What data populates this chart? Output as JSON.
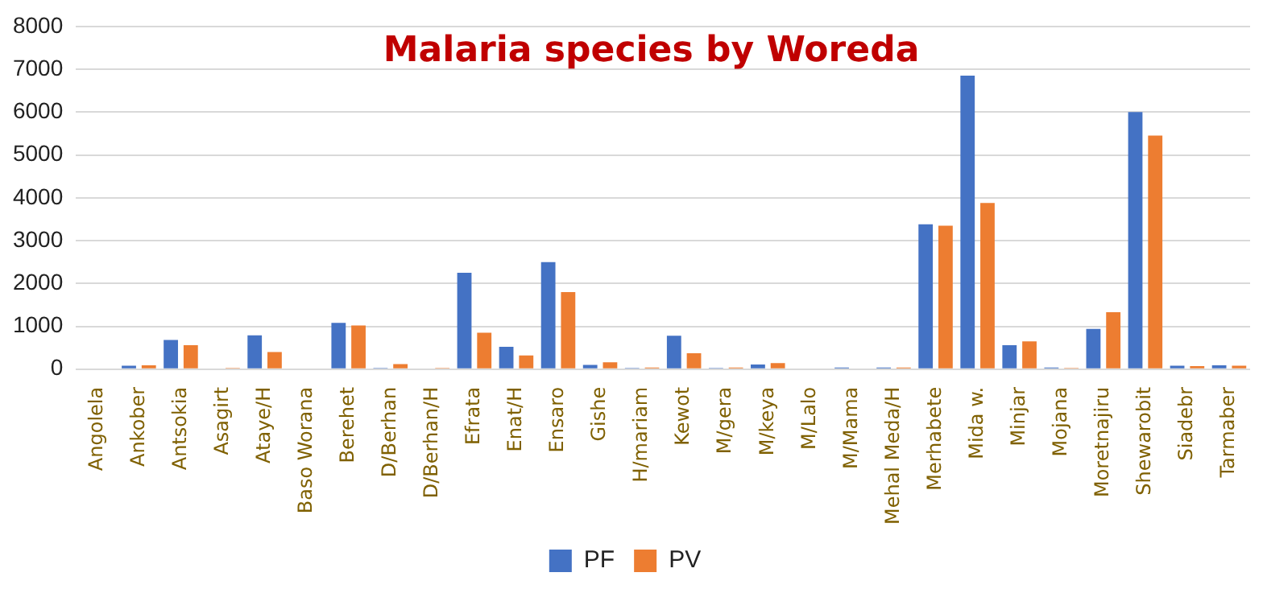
{
  "chart_data": {
    "type": "bar",
    "title": "Malaria species by Woreda",
    "categories": [
      "Angolela",
      "Ankober",
      "Antsokia",
      "Asagirt",
      "Ataye/H",
      "Baso Worana",
      "Berehet",
      "D/Berhan",
      "D/Berhan/H",
      "Efrata",
      "Enat/H",
      "Ensaro",
      "Gishe",
      "H/mariam",
      "Kewot",
      "M/gera",
      "M/keya",
      "M/Lalo",
      "M/Mama",
      "Mehal Meda/H",
      "Merhabete",
      "Mida w.",
      "Minjar",
      "Mojana",
      "Moretnajiru",
      "Shewarobit",
      "Siadebr",
      "Tarmaber"
    ],
    "series": [
      {
        "name": "PF",
        "color": "#4472c4",
        "values": [
          0,
          80,
          680,
          0,
          790,
          0,
          1080,
          30,
          0,
          2250,
          520,
          2500,
          100,
          30,
          780,
          30,
          110,
          0,
          40,
          40,
          3380,
          6850,
          560,
          40,
          940,
          6000,
          80,
          90
        ]
      },
      {
        "name": "PV",
        "color": "#ed7d31",
        "values": [
          0,
          90,
          560,
          30,
          400,
          0,
          1020,
          120,
          30,
          850,
          320,
          1800,
          160,
          40,
          370,
          40,
          140,
          0,
          0,
          40,
          3350,
          3880,
          650,
          30,
          1330,
          5450,
          70,
          80
        ]
      }
    ],
    "ylim": [
      0,
      8000
    ],
    "yticks": [
      0,
      1000,
      2000,
      3000,
      4000,
      5000,
      6000,
      7000,
      8000
    ],
    "grid": "y",
    "legend": "bottom"
  }
}
